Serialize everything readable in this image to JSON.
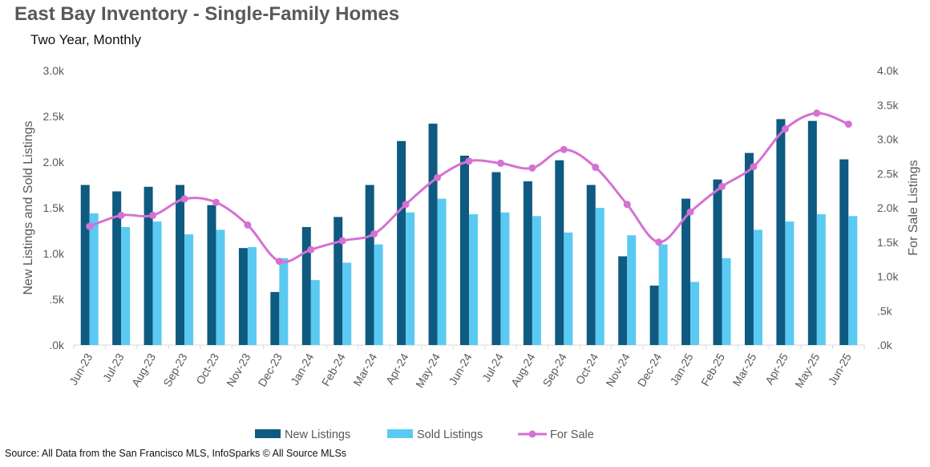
{
  "title": "East Bay Inventory - Single-Family Homes",
  "subtitle": "Two Year, Monthly",
  "source": "Source: All Data from the San Francisco MLS, InfoSparks © All Source MLSs",
  "colors": {
    "new_listings": "#0e5a80",
    "sold_listings": "#5bcaf2",
    "for_sale": "#d571d2",
    "tick": "#595959",
    "axis": "#d9d9d9"
  },
  "chart_data": {
    "type": "bar",
    "categories": [
      "Jun-23",
      "Jul-23",
      "Aug-23",
      "Sep-23",
      "Oct-23",
      "Nov-23",
      "Dec-23",
      "Jan-24",
      "Feb-24",
      "Mar-24",
      "Apr-24",
      "May-24",
      "Jun-24",
      "Jul-24",
      "Aug-24",
      "Sep-24",
      "Oct-24",
      "Nov-24",
      "Dec-24",
      "Jan-25",
      "Feb-25",
      "Mar-25",
      "Apr-25",
      "May-25",
      "Jun-25"
    ],
    "series": [
      {
        "name": "New Listings",
        "type": "bar",
        "axis": "left",
        "values": [
          1750,
          1680,
          1730,
          1750,
          1530,
          1060,
          580,
          1290,
          1400,
          1750,
          2230,
          2420,
          2070,
          1890,
          1790,
          2020,
          1750,
          970,
          650,
          1600,
          1810,
          2100,
          2470,
          2450,
          2030
        ]
      },
      {
        "name": "Sold Listings",
        "type": "bar",
        "axis": "left",
        "values": [
          1440,
          1290,
          1350,
          1210,
          1260,
          1070,
          950,
          710,
          900,
          1100,
          1450,
          1600,
          1430,
          1450,
          1410,
          1230,
          1500,
          1200,
          1100,
          690,
          950,
          1260,
          1350,
          1430,
          1410
        ]
      },
      {
        "name": "For Sale",
        "type": "line",
        "axis": "right",
        "values": [
          1730,
          1890,
          1890,
          2130,
          2080,
          1750,
          1220,
          1390,
          1520,
          1620,
          2050,
          2440,
          2680,
          2650,
          2580,
          2850,
          2590,
          2050,
          1500,
          1940,
          2310,
          2600,
          3150,
          3380,
          3220
        ]
      }
    ],
    "left_axis": {
      "label": "New Listings and Sold Listings",
      "ylim": [
        0,
        3000
      ],
      "ticks": [
        0,
        500,
        1000,
        1500,
        2000,
        2500,
        3000
      ],
      "tick_labels": [
        ".0k",
        ".5k",
        "1.0k",
        "1.5k",
        "2.0k",
        "2.5k",
        "3.0k"
      ]
    },
    "right_axis": {
      "label": "For Sale Listings",
      "ylim": [
        0,
        4000
      ],
      "ticks": [
        0,
        500,
        1000,
        1500,
        2000,
        2500,
        3000,
        3500,
        4000
      ],
      "tick_labels": [
        ".0k",
        ".5k",
        "1.0k",
        "1.5k",
        "2.0k",
        "2.5k",
        "3.0k",
        "3.5k",
        "4.0k"
      ]
    },
    "grid": false,
    "legend_position": "bottom"
  }
}
